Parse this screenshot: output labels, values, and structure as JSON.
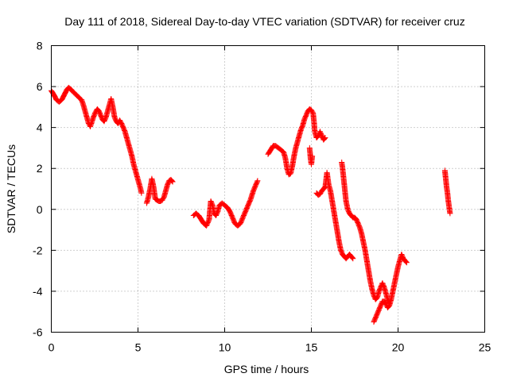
{
  "chart_data": {
    "type": "scatter",
    "title": "Day 111 of 2018, Sidereal Day-to-day VTEC variation (SDTVAR) for receiver cruz",
    "xlabel": "GPS time / hours",
    "ylabel": "SDTVAR / TECUs",
    "xlim": [
      0,
      25
    ],
    "ylim": [
      -6,
      8
    ],
    "xticks": [
      0,
      5,
      10,
      15,
      20,
      25
    ],
    "yticks": [
      -6,
      -4,
      -2,
      0,
      2,
      4,
      6,
      8
    ],
    "grid": true,
    "marker": "+",
    "color": "#ff0000",
    "segments": [
      [
        [
          0.0,
          5.8
        ],
        [
          0.15,
          5.6
        ],
        [
          0.3,
          5.35
        ],
        [
          0.45,
          5.25
        ],
        [
          0.6,
          5.35
        ],
        [
          0.75,
          5.6
        ],
        [
          0.9,
          5.85
        ],
        [
          1.0,
          5.95
        ],
        [
          1.15,
          5.85
        ],
        [
          1.3,
          5.7
        ],
        [
          1.45,
          5.6
        ],
        [
          1.6,
          5.45
        ],
        [
          1.75,
          5.35
        ],
        [
          1.85,
          5.1
        ],
        [
          1.95,
          4.8
        ],
        [
          2.05,
          4.5
        ],
        [
          2.15,
          4.2
        ],
        [
          2.25,
          4.05
        ],
        [
          2.35,
          4.3
        ],
        [
          2.45,
          4.55
        ],
        [
          2.55,
          4.75
        ],
        [
          2.65,
          4.9
        ],
        [
          2.75,
          4.8
        ],
        [
          2.85,
          4.6
        ],
        [
          2.95,
          4.4
        ],
        [
          3.05,
          4.3
        ],
        [
          3.15,
          4.5
        ],
        [
          3.25,
          4.8
        ],
        [
          3.35,
          5.1
        ],
        [
          3.45,
          5.4
        ],
        [
          3.55,
          5.0
        ],
        [
          3.65,
          4.5
        ],
        [
          3.75,
          4.3
        ],
        [
          3.85,
          4.2
        ],
        [
          3.95,
          4.35
        ],
        [
          4.05,
          4.2
        ],
        [
          4.15,
          4.0
        ],
        [
          4.25,
          3.8
        ],
        [
          4.35,
          3.5
        ],
        [
          4.45,
          3.2
        ],
        [
          4.55,
          2.9
        ],
        [
          4.65,
          2.6
        ],
        [
          4.75,
          2.2
        ],
        [
          4.85,
          1.9
        ],
        [
          4.95,
          1.6
        ],
        [
          5.05,
          1.3
        ],
        [
          5.15,
          1.0
        ],
        [
          5.2,
          0.8
        ]
      ],
      [
        [
          5.5,
          0.3
        ],
        [
          5.6,
          0.6
        ],
        [
          5.7,
          1.0
        ],
        [
          5.8,
          1.5
        ],
        [
          5.9,
          1.1
        ],
        [
          6.0,
          0.5
        ],
        [
          6.1,
          0.45
        ],
        [
          6.2,
          0.4
        ],
        [
          6.3,
          0.4
        ],
        [
          6.4,
          0.45
        ],
        [
          6.5,
          0.6
        ],
        [
          6.6,
          0.9
        ],
        [
          6.7,
          1.2
        ],
        [
          6.8,
          1.4
        ],
        [
          6.9,
          1.45
        ],
        [
          7.0,
          1.35
        ]
      ],
      [
        [
          8.2,
          -0.3
        ],
        [
          8.35,
          -0.2
        ],
        [
          8.5,
          -0.3
        ],
        [
          8.65,
          -0.5
        ],
        [
          8.8,
          -0.7
        ],
        [
          8.95,
          -0.8
        ],
        [
          9.1,
          -0.5
        ],
        [
          9.2,
          0.4
        ],
        [
          9.3,
          0.2
        ],
        [
          9.4,
          -0.2
        ],
        [
          9.5,
          -0.3
        ],
        [
          9.6,
          -0.1
        ],
        [
          9.7,
          0.2
        ],
        [
          9.85,
          0.3
        ],
        [
          10.0,
          0.2
        ],
        [
          10.15,
          0.1
        ],
        [
          10.3,
          -0.1
        ],
        [
          10.45,
          -0.4
        ],
        [
          10.6,
          -0.7
        ],
        [
          10.75,
          -0.8
        ],
        [
          10.9,
          -0.7
        ],
        [
          11.05,
          -0.4
        ],
        [
          11.2,
          -0.1
        ],
        [
          11.35,
          0.2
        ],
        [
          11.5,
          0.5
        ],
        [
          11.65,
          0.9
        ],
        [
          11.8,
          1.2
        ],
        [
          11.9,
          1.4
        ]
      ],
      [
        [
          12.5,
          2.7
        ],
        [
          12.65,
          2.9
        ],
        [
          12.8,
          3.1
        ],
        [
          12.95,
          3.1
        ],
        [
          13.1,
          3.0
        ],
        [
          13.25,
          2.9
        ],
        [
          13.4,
          2.8
        ],
        [
          13.5,
          2.5
        ],
        [
          13.6,
          2.0
        ],
        [
          13.7,
          1.7
        ],
        [
          13.8,
          1.75
        ],
        [
          13.9,
          2.1
        ],
        [
          14.0,
          2.6
        ],
        [
          14.1,
          3.0
        ],
        [
          14.2,
          3.3
        ],
        [
          14.3,
          3.6
        ],
        [
          14.4,
          3.9
        ],
        [
          14.5,
          4.1
        ],
        [
          14.6,
          4.4
        ],
        [
          14.7,
          4.6
        ],
        [
          14.8,
          4.8
        ],
        [
          14.9,
          4.9
        ],
        [
          15.0,
          4.85
        ],
        [
          15.1,
          4.7
        ],
        [
          15.15,
          4.3
        ],
        [
          15.2,
          3.8
        ],
        [
          15.3,
          3.5
        ],
        [
          15.4,
          3.6
        ],
        [
          15.5,
          3.8
        ],
        [
          15.6,
          3.6
        ],
        [
          15.7,
          3.4
        ],
        [
          15.8,
          3.5
        ]
      ],
      [
        [
          14.9,
          3.0
        ],
        [
          14.95,
          2.5
        ],
        [
          15.0,
          2.2
        ],
        [
          15.05,
          2.6
        ]
      ],
      [
        [
          15.3,
          0.8
        ],
        [
          15.4,
          0.7
        ],
        [
          15.5,
          0.75
        ],
        [
          15.6,
          0.9
        ],
        [
          15.7,
          1.0
        ],
        [
          15.8,
          1.1
        ],
        [
          15.9,
          1.8
        ],
        [
          16.0,
          1.2
        ],
        [
          16.1,
          0.9
        ],
        [
          16.2,
          0.4
        ],
        [
          16.3,
          -0.1
        ],
        [
          16.4,
          -0.6
        ],
        [
          16.5,
          -1.1
        ],
        [
          16.6,
          -1.6
        ],
        [
          16.7,
          -2.0
        ],
        [
          16.8,
          -2.2
        ],
        [
          16.9,
          -2.3
        ],
        [
          17.0,
          -2.4
        ],
        [
          17.1,
          -2.3
        ],
        [
          17.2,
          -2.2
        ],
        [
          17.3,
          -2.3
        ],
        [
          17.4,
          -2.4
        ]
      ],
      [
        [
          16.75,
          2.3
        ],
        [
          16.8,
          2.0
        ],
        [
          16.85,
          1.6
        ],
        [
          16.9,
          1.2
        ],
        [
          16.95,
          0.8
        ],
        [
          17.0,
          0.4
        ],
        [
          17.1,
          0.0
        ],
        [
          17.2,
          -0.2
        ],
        [
          17.3,
          -0.3
        ],
        [
          17.4,
          -0.4
        ],
        [
          17.5,
          -0.4
        ],
        [
          17.6,
          -0.5
        ],
        [
          17.7,
          -0.7
        ],
        [
          17.8,
          -0.9
        ],
        [
          17.9,
          -1.2
        ],
        [
          18.0,
          -1.6
        ],
        [
          18.1,
          -2.0
        ],
        [
          18.2,
          -2.5
        ],
        [
          18.3,
          -3.0
        ],
        [
          18.4,
          -3.5
        ],
        [
          18.5,
          -3.9
        ],
        [
          18.6,
          -4.2
        ],
        [
          18.7,
          -4.4
        ],
        [
          18.8,
          -4.3
        ],
        [
          18.9,
          -4.0
        ],
        [
          19.0,
          -3.8
        ],
        [
          19.1,
          -3.6
        ],
        [
          19.2,
          -3.8
        ],
        [
          19.3,
          -4.1
        ],
        [
          19.4,
          -4.4
        ],
        [
          19.5,
          -4.6
        ]
      ],
      [
        [
          18.6,
          -5.5
        ],
        [
          18.7,
          -5.3
        ],
        [
          18.8,
          -5.1
        ],
        [
          18.9,
          -4.9
        ],
        [
          19.0,
          -4.7
        ],
        [
          19.1,
          -4.5
        ],
        [
          19.2,
          -4.5
        ],
        [
          19.3,
          -4.6
        ],
        [
          19.4,
          -4.8
        ],
        [
          19.5,
          -4.7
        ],
        [
          19.6,
          -4.4
        ],
        [
          19.7,
          -4.0
        ],
        [
          19.8,
          -3.6
        ],
        [
          19.9,
          -3.2
        ],
        [
          20.0,
          -2.8
        ],
        [
          20.1,
          -2.5
        ],
        [
          20.2,
          -2.2
        ],
        [
          20.3,
          -2.4
        ],
        [
          20.4,
          -2.5
        ],
        [
          20.5,
          -2.6
        ]
      ],
      [
        [
          22.7,
          1.9
        ],
        [
          22.75,
          1.5
        ],
        [
          22.8,
          1.1
        ],
        [
          22.85,
          0.8
        ],
        [
          22.9,
          0.4
        ],
        [
          22.95,
          0.1
        ],
        [
          23.0,
          -0.2
        ]
      ]
    ]
  }
}
